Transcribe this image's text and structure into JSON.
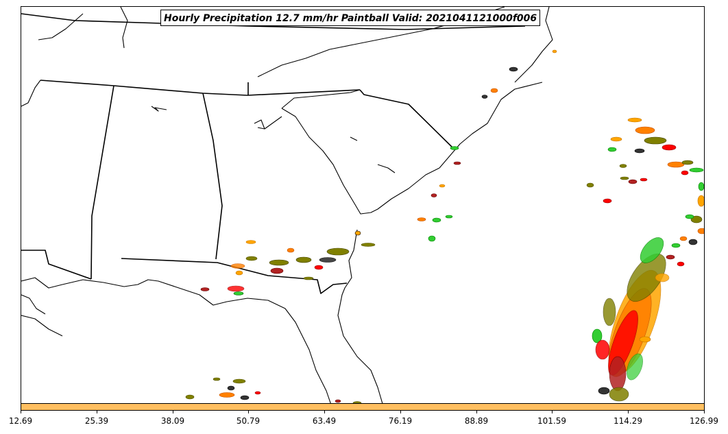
{
  "map": {
    "title": "Hourly Precipitation 12.7 mm/hr Paintball Valid: 2021041121000f006"
  },
  "colorbar": {
    "color": "#ffbf60",
    "ticks": [
      "12.69",
      "25.39",
      "38.09",
      "50.79",
      "63.49",
      "76.19",
      "88.89",
      "101.59",
      "114.29",
      "126.99"
    ]
  },
  "paintball_colors": [
    "#ff8000",
    "#ff0000",
    "#32cd32",
    "#808000",
    "#ff9d3c",
    "#b22222",
    "#333333",
    "#ffa500"
  ]
}
